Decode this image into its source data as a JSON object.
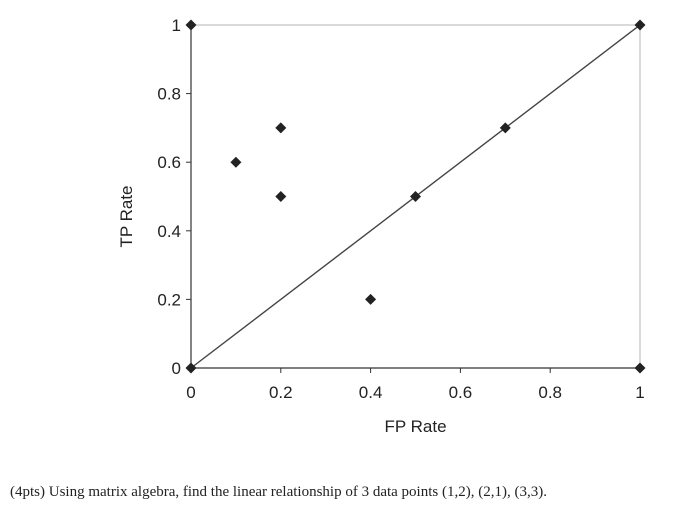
{
  "chart_data": {
    "type": "scatter",
    "title": "",
    "xlabel": "FP Rate",
    "ylabel": "TP Rate",
    "xlim": [
      0,
      1
    ],
    "ylim": [
      0,
      1
    ],
    "x_ticks": [
      0,
      0.2,
      0.4,
      0.6,
      0.8,
      1
    ],
    "y_ticks": [
      0,
      0.2,
      0.4,
      0.6,
      0.8,
      1
    ],
    "x_tick_labels": [
      "0",
      "0.2",
      "0.4",
      "0.6",
      "0.8",
      "1"
    ],
    "y_tick_labels": [
      "0",
      "0.2",
      "0.4",
      "0.6",
      "0.8",
      "1"
    ],
    "grid": false,
    "series": [
      {
        "name": "points",
        "marker": "diamond",
        "color": "#222222",
        "points": [
          {
            "x": 0,
            "y": 0
          },
          {
            "x": 0,
            "y": 1
          },
          {
            "x": 1,
            "y": 1
          },
          {
            "x": 1,
            "y": 0
          },
          {
            "x": 0.1,
            "y": 0.6
          },
          {
            "x": 0.2,
            "y": 0.7
          },
          {
            "x": 0.2,
            "y": 0.5
          },
          {
            "x": 0.5,
            "y": 0.5
          },
          {
            "x": 0.7,
            "y": 0.7
          },
          {
            "x": 0.4,
            "y": 0.2
          }
        ]
      },
      {
        "name": "diagonal",
        "type": "line",
        "color": "#444444",
        "x": [
          0,
          1
        ],
        "y": [
          0,
          1
        ]
      }
    ]
  },
  "question": {
    "text": "(4pts) Using matrix algebra, find the linear relationship of 3 data points (1,2), (2,1), (3,3)."
  }
}
